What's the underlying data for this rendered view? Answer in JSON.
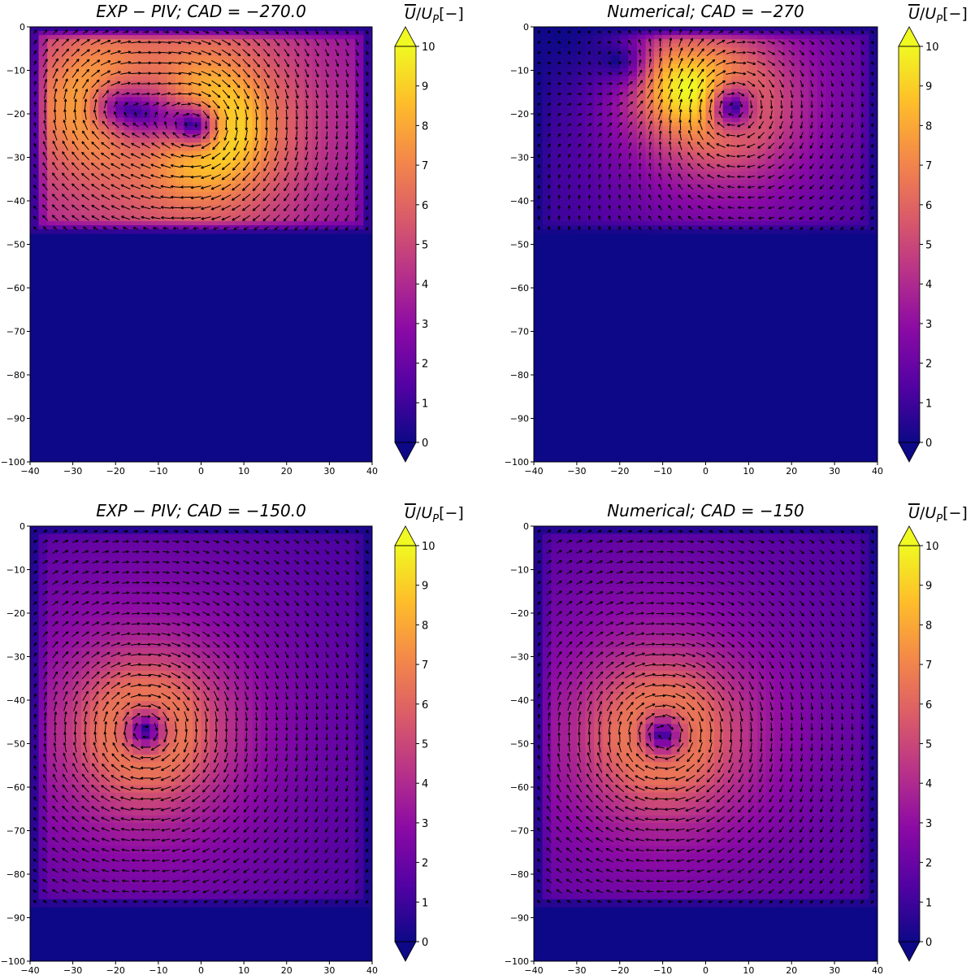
{
  "colors": {
    "colormap": [
      "#0d0887",
      "#5302a3",
      "#8b0aa5",
      "#b83289",
      "#db5c68",
      "#f48849",
      "#febd2a",
      "#f0f921"
    ],
    "arrow": "#000000",
    "axes": "#000000",
    "background": "#ffffff"
  },
  "chart_data": [
    {
      "type": "heatmap",
      "subtype": "vector-field",
      "title_parts": [
        "EXP − PIV",
        "; ",
        "CAD = −270.0"
      ],
      "xlabel": "",
      "ylabel": "",
      "xlim": [
        -40,
        40
      ],
      "ylim": [
        -100,
        0
      ],
      "x_ticks": [
        -40,
        -30,
        -20,
        -10,
        0,
        10,
        20,
        30,
        40
      ],
      "y_ticks": [
        0,
        -10,
        -20,
        -30,
        -40,
        -50,
        -60,
        -70,
        -80,
        -90,
        -100
      ],
      "field_bottom": -47.5,
      "vortices": [
        {
          "x": 0,
          "y": -23,
          "strength": 3.0,
          "sense": "clockwise"
        },
        {
          "x": -22,
          "y": -18,
          "strength": 2.0,
          "sense": "clockwise"
        }
      ],
      "mean_speed_range": [
        0,
        9
      ],
      "colorbar": {
        "label": "U̅/U_P[−]",
        "min": 0,
        "max": 10,
        "ticks": [
          0,
          1,
          2,
          3,
          4,
          5,
          6,
          7,
          8,
          9,
          10
        ],
        "extend": "both"
      }
    },
    {
      "type": "heatmap",
      "subtype": "vector-field",
      "title_parts": [
        "Numerical",
        "; ",
        "CAD = −270"
      ],
      "xlabel": "",
      "ylabel": "",
      "xlim": [
        -40,
        40
      ],
      "ylim": [
        -100,
        0
      ],
      "x_ticks": [
        -40,
        -30,
        -20,
        -10,
        0,
        10,
        20,
        30,
        40
      ],
      "y_ticks": [
        0,
        -10,
        -20,
        -30,
        -40,
        -50,
        -60,
        -70,
        -80,
        -90,
        -100
      ],
      "field_bottom": -47.5,
      "vortices": [
        {
          "x": 5,
          "y": -18,
          "strength": 3.0,
          "sense": "clockwise"
        },
        {
          "x": -15,
          "y": -10,
          "strength": 1.5,
          "sense": "counterclockwise"
        }
      ],
      "mean_speed_range": [
        0,
        10
      ],
      "colorbar": {
        "label": "U̅/U_P[−]",
        "min": 0,
        "max": 10,
        "ticks": [
          0,
          1,
          2,
          3,
          4,
          5,
          6,
          7,
          8,
          9,
          10
        ],
        "extend": "both"
      }
    },
    {
      "type": "heatmap",
      "subtype": "vector-field",
      "title_parts": [
        "EXP − PIV",
        "; ",
        "CAD = −150.0"
      ],
      "xlabel": "",
      "ylabel": "",
      "xlim": [
        -40,
        40
      ],
      "ylim": [
        -100,
        0
      ],
      "x_ticks": [
        -40,
        -30,
        -20,
        -10,
        0,
        10,
        20,
        30,
        40
      ],
      "y_ticks": [
        0,
        -10,
        -20,
        -30,
        -40,
        -50,
        -60,
        -70,
        -80,
        -90,
        -100
      ],
      "field_bottom": -87.5,
      "vortices": [
        {
          "x": -13,
          "y": -47,
          "strength": 4.0,
          "sense": "clockwise"
        }
      ],
      "mean_speed_range": [
        0,
        6.5
      ],
      "colorbar": {
        "label": "U̅/U_P[−]",
        "min": 0,
        "max": 10,
        "ticks": [
          0,
          1,
          2,
          3,
          4,
          5,
          6,
          7,
          8,
          9,
          10
        ],
        "extend": "both"
      }
    },
    {
      "type": "heatmap",
      "subtype": "vector-field",
      "title_parts": [
        "Numerical",
        "; ",
        "CAD = −150"
      ],
      "xlabel": "",
      "ylabel": "",
      "xlim": [
        -40,
        40
      ],
      "ylim": [
        -100,
        0
      ],
      "x_ticks": [
        -40,
        -30,
        -20,
        -10,
        0,
        10,
        20,
        30,
        40
      ],
      "y_ticks": [
        0,
        -10,
        -20,
        -30,
        -40,
        -50,
        -60,
        -70,
        -80,
        -90,
        -100
      ],
      "field_bottom": -87.5,
      "vortices": [
        {
          "x": -10,
          "y": -48,
          "strength": 4.0,
          "sense": "clockwise"
        }
      ],
      "mean_speed_range": [
        0,
        6.5
      ],
      "colorbar": {
        "label": "U̅/U_P[−]",
        "min": 0,
        "max": 10,
        "ticks": [
          0,
          1,
          2,
          3,
          4,
          5,
          6,
          7,
          8,
          9,
          10
        ],
        "extend": "both"
      }
    }
  ]
}
